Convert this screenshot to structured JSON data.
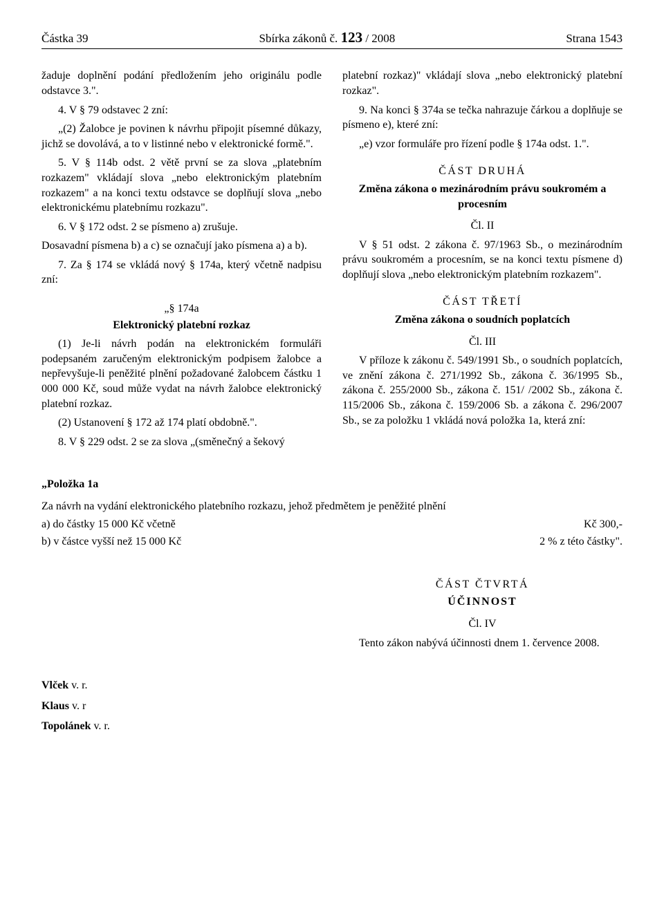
{
  "header": {
    "left": "Částka 39",
    "center_prefix": "Sbírka zákonů č.",
    "issue_number": "123",
    "center_suffix": " / 2008",
    "right": "Strana 1543"
  },
  "left_col": {
    "p1": "žaduje doplnění podání předložením jeho originálu podle odstavce 3.\".",
    "p2": "4. V § 79 odstavec 2 zní:",
    "p3": "„(2) Žalobce je povinen k návrhu připojit písemné důkazy, jichž se dovolává, a to v listinné nebo v elektronické formě.\".",
    "p4": "5. V § 114b odst. 2 větě první se za slova „platebním rozkazem\" vkládají slova „nebo elektronickým platebním rozkazem\" a na konci textu odstavce se doplňují slova „nebo elektronickému platebnímu rozkazu\".",
    "p5": "6. V § 172 odst. 2 se písmeno a) zrušuje.",
    "p6": "Dosavadní písmena b) a c) se označují jako písmena a) a b).",
    "p7": "7. Za § 174 se vkládá nový § 174a, který včetně nadpisu zní:",
    "s174a_num": "„§ 174a",
    "s174a_title": "Elektronický platební rozkaz",
    "p8": "(1) Je-li návrh podán na elektronickém formuláři podepsaném zaručeným elektronickým podpisem žalobce a nepřevyšuje-li peněžité plnění požadované žalobcem částku 1 000 000 Kč, soud může vydat na návrh žalobce elektronický platební rozkaz.",
    "p9": "(2) Ustanovení § 172 až 174 platí obdobně.\".",
    "p10": "8. V § 229 odst. 2 se za slova „(směnečný a šekový"
  },
  "right_col": {
    "p1": "platební rozkaz)\" vkládají slova „nebo elektronický platební rozkaz\".",
    "p2": "9. Na konci § 374a se tečka nahrazuje čárkou a doplňuje se písmeno e), které zní:",
    "p3": "„e) vzor formuláře pro řízení podle § 174a odst. 1.\".",
    "part2": "ČÁST DRUHÁ",
    "part2_sub": "Změna zákona o mezinárodním právu soukromém a procesním",
    "art2": "Čl. II",
    "p4": "V § 51 odst. 2 zákona č. 97/1963 Sb., o mezinárodním právu soukromém a procesním, se na konci textu písmene d) doplňují slova „nebo elektronickým platebním rozkazem\".",
    "part3": "ČÁST TŘETÍ",
    "part3_sub": "Změna zákona o soudních poplatcích",
    "art3": "Čl. III",
    "p5": "V příloze k zákonu č. 549/1991 Sb., o soudních poplatcích, ve znění zákona č. 271/1992 Sb., zákona č. 36/1995 Sb., zákona č. 255/2000 Sb., zákona č. 151/ /2002 Sb., zákona č. 115/2006 Sb., zákona č. 159/2006 Sb. a zákona č. 296/2007 Sb., se za položku 1 vkládá nová položka 1a, která zní:"
  },
  "polozka": {
    "title": "„Položka 1a",
    "lead": "Za návrh na vydání elektronického platebního rozkazu, jehož předmětem je peněžité plnění",
    "row_a_left": "a) do částky 15 000 Kč včetně",
    "row_a_right": "Kč 300,-",
    "row_b_left": "b) v částce vyšší než 15 000 Kč",
    "row_b_right": "2 % z této částky\"."
  },
  "part4": {
    "heading": "ČÁST ČTVRTÁ",
    "sub": "ÚČINNOST",
    "art": "Čl. IV",
    "text": "Tento zákon nabývá účinnosti dnem 1. července 2008."
  },
  "signatures": {
    "s1": "Vlček v. r.",
    "s2": "Klaus v. r",
    "s3": "Topolánek v. r."
  }
}
